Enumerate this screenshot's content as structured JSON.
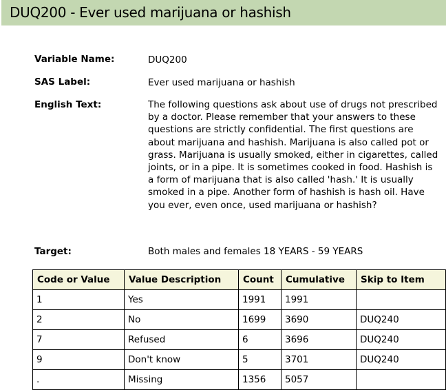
{
  "title": "DUQ200 - Ever used marijuana or hashish",
  "fields": {
    "variable_name_label": "Variable Name:",
    "variable_name": "DUQ200",
    "sas_label_label": "SAS Label:",
    "sas_label": "Ever used marijuana or hashish",
    "english_text_label": "English Text:",
    "english_text": "The following questions ask about use of drugs not prescribed by a doctor. Please remember that your answers to these questions are strictly confidential. The first questions are about marijuana and hashish. Marijuana is also called pot or grass. Marijuana is usually smoked, either in cigarettes, called joints, or in a pipe. It is sometimes cooked in food. Hashish is a form of marijuana that is also called 'hash.' It is usually smoked in a pipe. Another form of hashish is hash oil. Have you ever, even once, used marijuana or hashish?",
    "target_label": "Target:",
    "target": "Both males and females 18 YEARS - 59 YEARS"
  },
  "table": {
    "headers": [
      "Code or Value",
      "Value Description",
      "Count",
      "Cumulative",
      "Skip to Item"
    ],
    "rows": [
      [
        "1",
        "Yes",
        "1991",
        "1991",
        ""
      ],
      [
        "2",
        "No",
        "1699",
        "3690",
        "DUQ240"
      ],
      [
        "7",
        "Refused",
        "6",
        "3696",
        "DUQ240"
      ],
      [
        "9",
        "Don't know",
        "5",
        "3701",
        "DUQ240"
      ],
      [
        ".",
        "Missing",
        "1356",
        "5057",
        ""
      ]
    ]
  }
}
